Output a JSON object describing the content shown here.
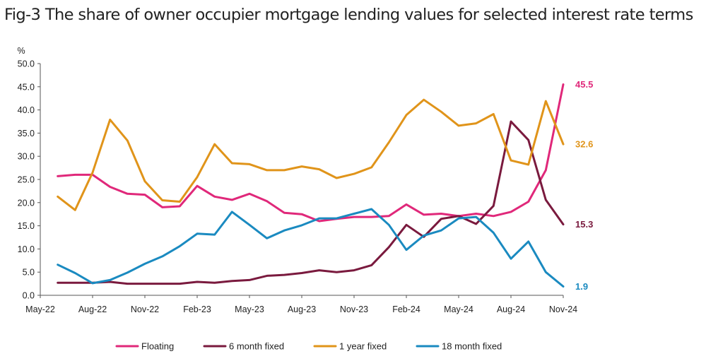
{
  "chart_data": {
    "type": "line",
    "title": "Fig-3 The share of owner occupier mortgage lending values for selected interest rate terms",
    "ylabel": "%",
    "ylim": [
      0,
      50
    ],
    "yticks": [
      "0.0",
      "5.0",
      "10.0",
      "15.0",
      "20.0",
      "25.0",
      "30.0",
      "35.0",
      "40.0",
      "45.0",
      "50.0"
    ],
    "xticks": [
      "May-22",
      "Aug-22",
      "Nov-22",
      "Feb-23",
      "May-23",
      "Aug-23",
      "Nov-23",
      "Feb-24",
      "May-24",
      "Aug-24",
      "Nov-24"
    ],
    "x": [
      "Jun-22",
      "Jul-22",
      "Aug-22",
      "Sep-22",
      "Oct-22",
      "Nov-22",
      "Dec-22",
      "Jan-23",
      "Feb-23",
      "Mar-23",
      "Apr-23",
      "May-23",
      "Jun-23",
      "Jul-23",
      "Aug-23",
      "Sep-23",
      "Oct-23",
      "Nov-23",
      "Dec-23",
      "Jan-24",
      "Feb-24",
      "Mar-24",
      "Apr-24",
      "May-24",
      "Jun-24",
      "Jul-24",
      "Aug-24",
      "Sep-24",
      "Oct-24",
      "Nov-24"
    ],
    "legend_position": "bottom",
    "grid": false,
    "series": [
      {
        "name": "Floating",
        "color": "#e0287a",
        "end_label": "45.5",
        "values": [
          25.7,
          26.0,
          26.0,
          23.4,
          21.9,
          21.7,
          19.0,
          19.2,
          23.6,
          21.3,
          20.6,
          21.9,
          20.3,
          17.8,
          17.5,
          16.0,
          16.5,
          16.9,
          16.9,
          17.1,
          19.6,
          17.4,
          17.6,
          17.1,
          17.6,
          17.1,
          18.0,
          20.2,
          27.0,
          45.5
        ]
      },
      {
        "name": "6 month fixed",
        "color": "#7a1a3e",
        "end_label": "15.3",
        "values": [
          2.7,
          2.7,
          2.7,
          2.9,
          2.5,
          2.5,
          2.5,
          2.5,
          2.9,
          2.7,
          3.1,
          3.3,
          4.2,
          4.4,
          4.8,
          5.4,
          5.0,
          5.4,
          6.5,
          10.4,
          15.2,
          12.6,
          16.5,
          17.1,
          15.4,
          19.3,
          37.5,
          33.5,
          20.6,
          15.3
        ]
      },
      {
        "name": "1 year fixed",
        "color": "#e0941a",
        "end_label": "32.6",
        "values": [
          21.3,
          18.4,
          26.5,
          37.9,
          33.4,
          24.6,
          20.5,
          20.2,
          25.5,
          32.6,
          28.5,
          28.3,
          27.0,
          27.0,
          27.8,
          27.2,
          25.3,
          26.2,
          27.6,
          33.0,
          38.9,
          42.2,
          39.6,
          36.6,
          37.1,
          39.1,
          29.1,
          28.2,
          41.9,
          32.6
        ]
      },
      {
        "name": "18 month fixed",
        "color": "#1a8ac0",
        "end_label": "1.9",
        "values": [
          6.6,
          4.8,
          2.6,
          3.3,
          4.9,
          6.8,
          8.4,
          10.6,
          13.3,
          13.1,
          18.0,
          15.2,
          12.3,
          14.0,
          15.1,
          16.6,
          16.6,
          17.6,
          18.6,
          15.2,
          9.8,
          12.9,
          14.0,
          16.6,
          16.9,
          13.5,
          7.9,
          11.6,
          5.0,
          1.9
        ]
      }
    ]
  }
}
